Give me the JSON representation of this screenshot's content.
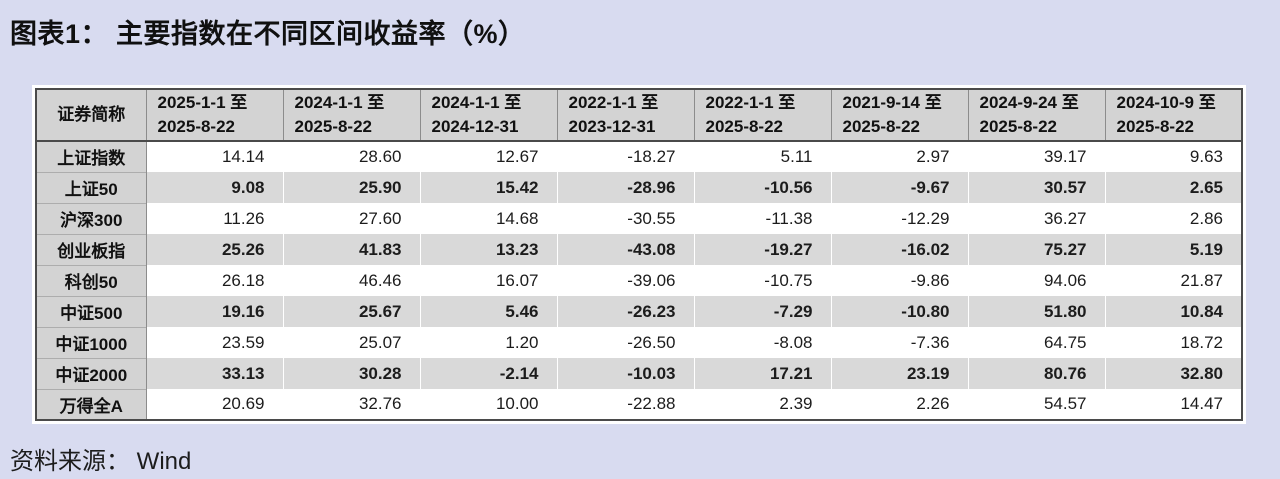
{
  "title": "图表1： 主要指数在不同区间收益率（%）",
  "source": "资料来源： Wind",
  "colors": {
    "page_bg": "#d8dbf0",
    "header_bg": "#d3d3d3",
    "stripe_bg": "#d9d9d9",
    "border_dark": "#4a4a4a"
  },
  "chart_data": {
    "type": "table",
    "title": "主要指数在不同区间收益率（%）",
    "columns": [
      {
        "label": "证券简称"
      },
      {
        "line1": "2025-1-1 至",
        "line2": "2025-8-22"
      },
      {
        "line1": "2024-1-1 至",
        "line2": "2025-8-22"
      },
      {
        "line1": "2024-1-1 至",
        "line2": "2024-12-31"
      },
      {
        "line1": "2022-1-1 至",
        "line2": "2023-12-31"
      },
      {
        "line1": "2022-1-1 至",
        "line2": "2025-8-22"
      },
      {
        "line1": "2021-9-14 至",
        "line2": "2025-8-22"
      },
      {
        "line1": "2024-9-24 至",
        "line2": "2025-8-22"
      },
      {
        "line1": "2024-10-9 至",
        "line2": "2025-8-22"
      }
    ],
    "rows": [
      {
        "name": "上证指数",
        "values": [
          "14.14",
          "28.60",
          "12.67",
          "-18.27",
          "5.11",
          "2.97",
          "39.17",
          "9.63"
        ]
      },
      {
        "name": "上证50",
        "values": [
          "9.08",
          "25.90",
          "15.42",
          "-28.96",
          "-10.56",
          "-9.67",
          "30.57",
          "2.65"
        ]
      },
      {
        "name": "沪深300",
        "values": [
          "11.26",
          "27.60",
          "14.68",
          "-30.55",
          "-11.38",
          "-12.29",
          "36.27",
          "2.86"
        ]
      },
      {
        "name": "创业板指",
        "values": [
          "25.26",
          "41.83",
          "13.23",
          "-43.08",
          "-19.27",
          "-16.02",
          "75.27",
          "5.19"
        ]
      },
      {
        "name": "科创50",
        "values": [
          "26.18",
          "46.46",
          "16.07",
          "-39.06",
          "-10.75",
          "-9.86",
          "94.06",
          "21.87"
        ]
      },
      {
        "name": "中证500",
        "values": [
          "19.16",
          "25.67",
          "5.46",
          "-26.23",
          "-7.29",
          "-10.80",
          "51.80",
          "10.84"
        ]
      },
      {
        "name": "中证1000",
        "values": [
          "23.59",
          "25.07",
          "1.20",
          "-26.50",
          "-8.08",
          "-7.36",
          "64.75",
          "18.72"
        ]
      },
      {
        "name": "中证2000",
        "values": [
          "33.13",
          "30.28",
          "-2.14",
          "-10.03",
          "17.21",
          "23.19",
          "80.76",
          "32.80"
        ]
      },
      {
        "name": "万得全A",
        "values": [
          "20.69",
          "32.76",
          "10.00",
          "-22.88",
          "2.39",
          "2.26",
          "54.57",
          "14.47"
        ]
      }
    ]
  }
}
